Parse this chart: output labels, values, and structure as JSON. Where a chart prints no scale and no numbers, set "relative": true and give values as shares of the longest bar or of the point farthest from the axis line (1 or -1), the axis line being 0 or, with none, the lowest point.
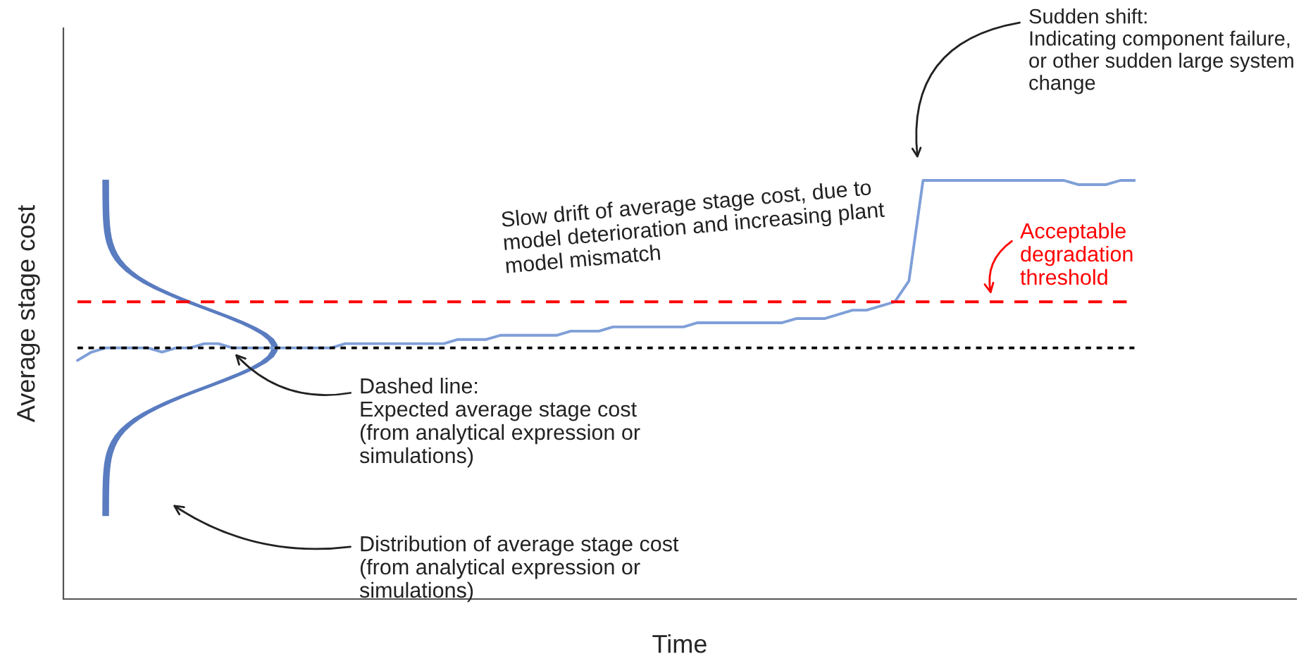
{
  "chart_data": {
    "type": "line",
    "relative": true,
    "xlabel": "Time",
    "ylabel": "Average stage cost",
    "tick_labels": false,
    "categories": [
      null,
      null,
      null,
      null,
      null,
      null,
      null,
      null,
      null,
      null,
      null,
      null,
      null,
      null,
      null,
      null,
      null,
      null,
      null,
      null,
      null,
      null,
      null,
      null,
      null,
      null,
      null,
      null,
      null,
      null,
      null,
      null,
      null,
      null,
      null,
      null,
      null,
      null,
      null,
      null,
      null,
      null,
      null,
      null,
      null,
      null,
      null,
      null,
      null,
      null,
      null,
      null,
      null,
      null,
      null,
      null,
      null,
      null,
      null,
      null,
      null,
      null,
      null,
      null,
      null,
      null,
      null,
      null,
      null,
      null,
      null,
      null,
      null,
      null,
      null,
      null
    ],
    "series": [
      {
        "color": "#7f9fd8",
        "values": [
          0.57,
          0.59,
          0.6,
          0.6,
          0.6,
          0.6,
          0.59,
          0.6,
          0.6,
          0.61,
          0.61,
          0.6,
          0.6,
          0.6,
          0.6,
          0.6,
          0.6,
          0.6,
          0.6,
          0.61,
          0.61,
          0.61,
          0.61,
          0.61,
          0.61,
          0.61,
          0.61,
          0.62,
          0.62,
          0.62,
          0.63,
          0.63,
          0.63,
          0.63,
          0.63,
          0.64,
          0.64,
          0.64,
          0.65,
          0.65,
          0.65,
          0.65,
          0.65,
          0.65,
          0.66,
          0.66,
          0.66,
          0.66,
          0.66,
          0.66,
          0.66,
          0.67,
          0.67,
          0.67,
          0.68,
          0.69,
          0.69,
          0.7,
          0.71,
          0.76,
          1.0,
          1.0,
          1.0,
          1.0,
          1.0,
          1.0,
          1.0,
          1.0,
          1.0,
          1.0,
          1.0,
          0.99,
          0.99,
          0.99,
          1.0,
          1.0
        ]
      }
    ],
    "ref_lines": [
      {
        "axis": "y",
        "value": 0.6,
        "color": "#000000",
        "line_style": "dotted"
      },
      {
        "axis": "y",
        "value": 0.71,
        "color": "#ff0000",
        "line_style": "dashed",
        "label": "Acceptable\ndegradation\nthreshold"
      }
    ],
    "annotations": [
      "Slow drift of average stage cost, due to\nmodel deterioration and increasing plant\nmodel mismatch",
      "Sudden shift:\nIndicating component failure,\nor other sudden large system\nchange",
      {
        "text": "Dashed line:\nExpected average stage cost\n(from analytical expression or\nsimulations)",
        "y": 0.6
      },
      "Distribution of average stage cost\n(from analytical expression or\nsimulations)"
    ]
  }
}
